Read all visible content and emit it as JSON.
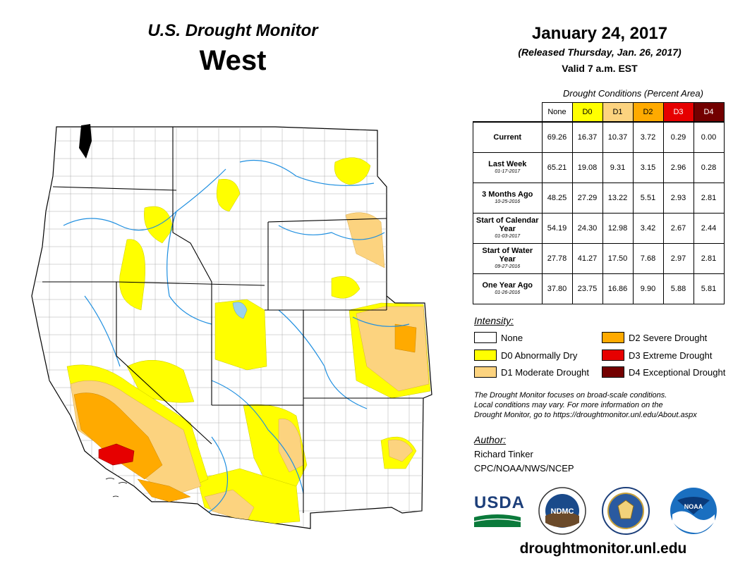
{
  "header": {
    "title": "U.S. Drought Monitor",
    "region": "West",
    "date": "January 24, 2017",
    "released": "(Released Thursday, Jan. 26, 2017)",
    "valid": "Valid 7 a.m. EST"
  },
  "conditions": {
    "caption": "Drought Conditions (Percent Area)",
    "columns": [
      "None",
      "D0",
      "D1",
      "D2",
      "D3",
      "D4"
    ],
    "column_colors": [
      "#ffffff",
      "#ffff00",
      "#fcd37f",
      "#ffaa00",
      "#e60000",
      "#730000"
    ],
    "column_text_colors": [
      "#000000",
      "#000000",
      "#000000",
      "#000000",
      "#ffffff",
      "#ffffff"
    ],
    "rows": [
      {
        "label": "Current",
        "date": "",
        "values": [
          "69.26",
          "16.37",
          "10.37",
          "3.72",
          "0.29",
          "0.00"
        ]
      },
      {
        "label": "Last Week",
        "date": "01-17-2017",
        "values": [
          "65.21",
          "19.08",
          "9.31",
          "3.15",
          "2.96",
          "0.28"
        ]
      },
      {
        "label": "3 Months Ago",
        "date": "10-25-2016",
        "values": [
          "48.25",
          "27.29",
          "13.22",
          "5.51",
          "2.93",
          "2.81"
        ]
      },
      {
        "label": "Start of Calendar Year",
        "date": "01-03-2017",
        "values": [
          "54.19",
          "24.30",
          "12.98",
          "3.42",
          "2.67",
          "2.44"
        ]
      },
      {
        "label": "Start of Water Year",
        "date": "09-27-2016",
        "values": [
          "27.78",
          "41.27",
          "17.50",
          "7.68",
          "2.97",
          "2.81"
        ]
      },
      {
        "label": "One Year Ago",
        "date": "01-26-2016",
        "values": [
          "37.80",
          "23.75",
          "16.86",
          "9.90",
          "5.88",
          "5.81"
        ]
      }
    ]
  },
  "legend": {
    "title": "Intensity:",
    "items": [
      {
        "label": "None",
        "color": "#ffffff"
      },
      {
        "label": "D0 Abnormally Dry",
        "color": "#ffff00"
      },
      {
        "label": "D1 Moderate Drought",
        "color": "#fcd37f"
      },
      {
        "label": "D2 Severe Drought",
        "color": "#ffaa00"
      },
      {
        "label": "D3 Extreme Drought",
        "color": "#e60000"
      },
      {
        "label": "D4 Exceptional Drought",
        "color": "#730000"
      }
    ]
  },
  "note": {
    "line1": "The Drought Monitor focuses on broad-scale conditions.",
    "line2": "Local conditions may vary. For more information on the",
    "line3": "Drought Monitor, go to https://droughtmonitor.unl.edu/About.aspx"
  },
  "author": {
    "title": "Author:",
    "name": "Richard Tinker",
    "org": "CPC/NOAA/NWS/NCEP"
  },
  "logos": {
    "usda": "USDA",
    "ndmc": "NDMC",
    "noaa": "NOAA"
  },
  "website": "droughtmonitor.unl.edu"
}
